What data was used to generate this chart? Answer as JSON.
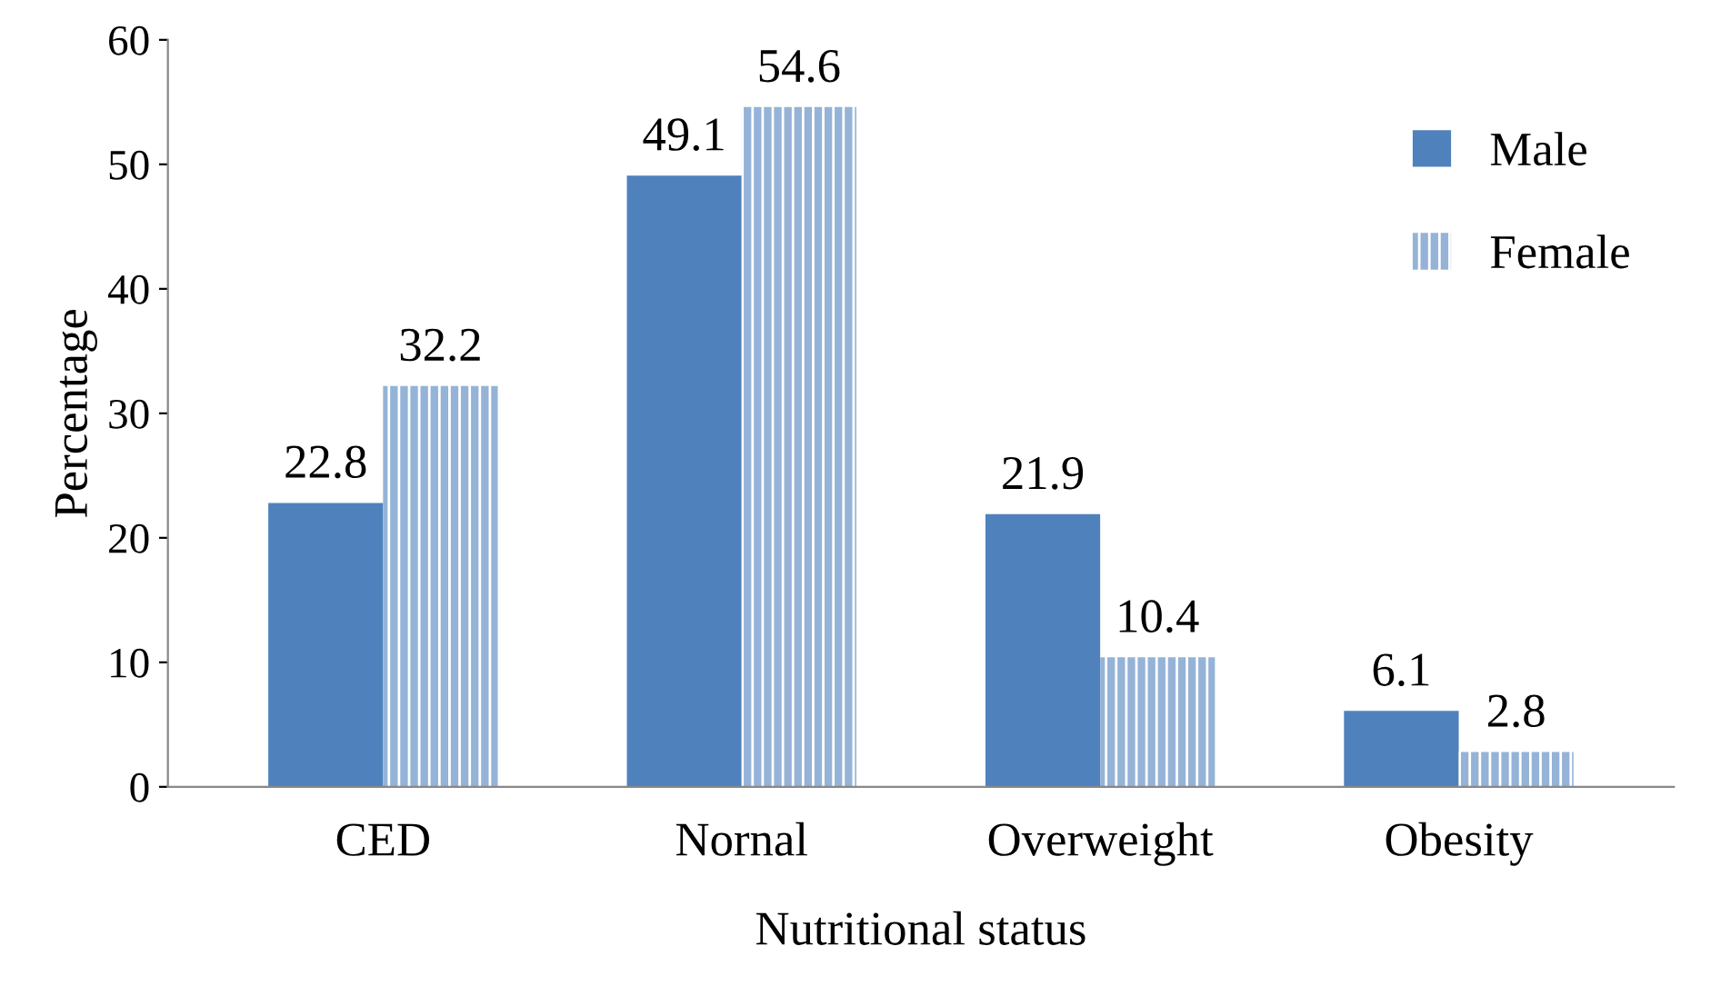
{
  "chart_data": {
    "type": "bar",
    "xlabel": "Nutritional status",
    "ylabel": "Percentage",
    "categories": [
      "CED",
      "Nornal",
      "Overweight",
      "Obesity"
    ],
    "series": [
      {
        "name": "Male",
        "color": "#4f81bd",
        "values": [
          22.8,
          49.1,
          21.9,
          6.1
        ]
      },
      {
        "name": "Female",
        "color": "#95b3d7",
        "values": [
          32.2,
          54.6,
          10.4,
          2.8
        ]
      }
    ],
    "ylim": [
      0,
      60
    ],
    "yticks": [
      0,
      10,
      20,
      30,
      40,
      50,
      60
    ],
    "data_labels": true,
    "legend": "right",
    "grid": false
  }
}
